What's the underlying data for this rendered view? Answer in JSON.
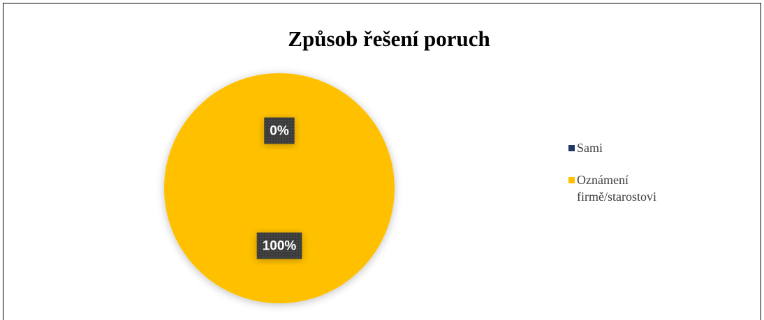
{
  "chart_data": {
    "type": "pie",
    "title": "Způsob řešení poruch",
    "categories": [
      "Sami",
      "Oznámení firmě/starostovi"
    ],
    "values": [
      0,
      100
    ],
    "value_labels": [
      "0%",
      "100%"
    ],
    "colors": [
      "#1f3864",
      "#ffc000"
    ],
    "legend": "right"
  }
}
